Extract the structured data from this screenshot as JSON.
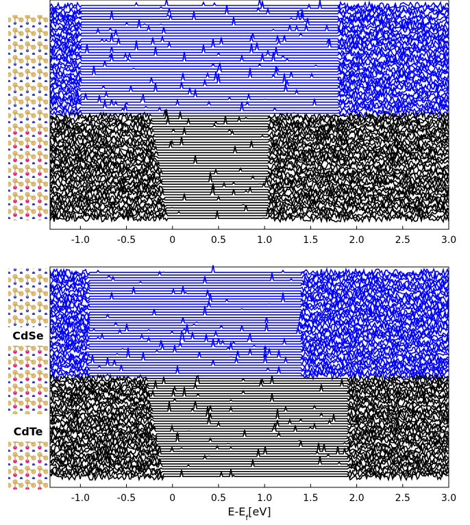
{
  "chart_data": [
    {
      "type": "line",
      "xlim": [
        -1.33,
        3.0
      ],
      "xticks": [
        {
          "value": -1,
          "label": "-1.0"
        },
        -0.5,
        0,
        0.5,
        {
          "value": 1,
          "label": "1.0"
        },
        1.5,
        {
          "value": 2,
          "label": "2.0"
        },
        2.5,
        {
          "value": 3,
          "label": "3.0"
        }
      ],
      "series": [
        {
          "color": "#0000ff",
          "gap": [
            -1.0,
            1.8
          ],
          "layers": 40
        },
        {
          "color": "#000000",
          "gap": [
            -0.05,
            1.05
          ],
          "layers": 40
        }
      ]
    },
    {
      "type": "line",
      "xlim": [
        -1.33,
        3.0
      ],
      "xticks": [
        {
          "value": -1,
          "label": "-1.0"
        },
        -0.5,
        0,
        0.5,
        {
          "value": 1,
          "label": "1.0"
        },
        1.5,
        {
          "value": 2,
          "label": "2.0"
        },
        2.5,
        {
          "value": 3,
          "label": "3.0"
        }
      ],
      "series": [
        {
          "color": "#0000ff",
          "gap": [
            -0.9,
            1.4
          ],
          "layers": 40
        },
        {
          "color": "#000000",
          "gap": [
            -0.1,
            1.9
          ],
          "layers": 40
        }
      ],
      "xlabel_parts": [
        "E-E",
        "f",
        "[eV]"
      ],
      "structure_labels": [
        "CdSe",
        "CdTe"
      ]
    }
  ]
}
